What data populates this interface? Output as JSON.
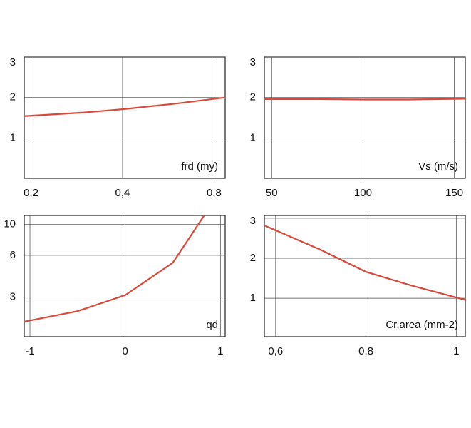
{
  "chart_data": [
    {
      "type": "line",
      "xlabel": "frd (my)",
      "xscale": "log",
      "xlim": [
        0.19,
        0.87
      ],
      "ylim": [
        0,
        3
      ],
      "xticks": [
        {
          "value": 0.2,
          "label": "0,2"
        },
        {
          "value": 0.4,
          "label": "0,4"
        },
        {
          "value": 0.8,
          "label": "0,8"
        }
      ],
      "yticks": [
        1,
        2,
        3
      ],
      "grid": true,
      "x": [
        0.19,
        0.3,
        0.4,
        0.6,
        0.87
      ],
      "values": [
        1.54,
        1.63,
        1.71,
        1.85,
        2.0
      ],
      "color": "#d9493a"
    },
    {
      "type": "line",
      "xlabel": "Vs (m/s)",
      "xlim": [
        46,
        156
      ],
      "ylim": [
        0,
        3
      ],
      "xticks": [
        50,
        100,
        150
      ],
      "yticks": [
        1,
        2,
        3
      ],
      "grid": true,
      "x": [
        46,
        75,
        100,
        125,
        156
      ],
      "values": [
        1.96,
        1.96,
        1.95,
        1.95,
        1.97
      ],
      "color": "#d9493a"
    },
    {
      "type": "line",
      "xlabel": "qd",
      "yscale": "log",
      "xlim": [
        -1.06,
        1.05
      ],
      "ylim": [
        1.56,
        11.6
      ],
      "xticks": [
        -1,
        0,
        1
      ],
      "yticks": [
        3,
        6,
        10
      ],
      "grid": true,
      "x": [
        -1.06,
        -0.5,
        0,
        0.5,
        0.83
      ],
      "values": [
        2.0,
        2.38,
        3.1,
        5.3,
        11.6
      ],
      "color": "#d9493a"
    },
    {
      "type": "line",
      "xlabel": "Cr,area (mm-2)",
      "xlim": [
        0.575,
        1.02
      ],
      "ylim": [
        0.04,
        3.07
      ],
      "xticks": [
        {
          "value": 0.6,
          "label": "0,6"
        },
        {
          "value": 0.8,
          "label": "0,8"
        },
        1
      ],
      "yticks": [
        1,
        2,
        3
      ],
      "grid": true,
      "x": [
        0.575,
        0.7,
        0.8,
        0.9,
        1.02
      ],
      "values": [
        2.82,
        2.21,
        1.66,
        1.32,
        0.96
      ],
      "color": "#d9493a"
    }
  ]
}
